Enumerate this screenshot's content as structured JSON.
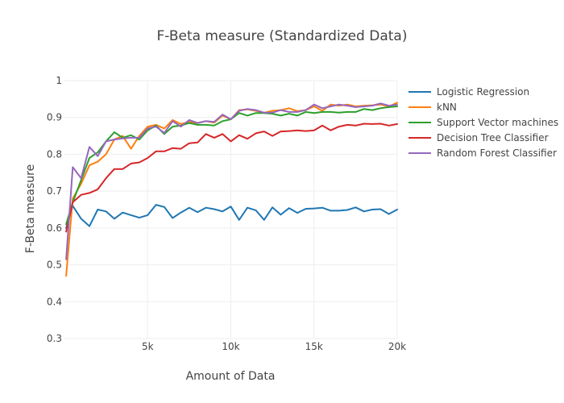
{
  "chart_data": {
    "type": "line",
    "title": "F-Beta measure (Standardized Data)",
    "xlabel": "Amount of Data",
    "ylabel": "F-Beta measure",
    "xlim": [
      0,
      20000
    ],
    "ylim": [
      0.3,
      1.0
    ],
    "grid": true,
    "legend_position": "right",
    "x_ticks": [
      5000,
      10000,
      15000,
      20000
    ],
    "x_tick_labels": [
      "5k",
      "10k",
      "15k",
      "20k"
    ],
    "y_ticks": [
      0.3,
      0.4,
      0.5,
      0.6,
      0.7,
      0.8,
      0.9,
      1.0
    ],
    "y_tick_labels": [
      "0.3",
      "0.4",
      "0.5",
      "0.6",
      "0.7",
      "0.8",
      "0.9",
      "1"
    ],
    "x": [
      100,
      500,
      1000,
      1500,
      2000,
      2500,
      3000,
      3500,
      4000,
      4500,
      5000,
      5500,
      6000,
      6500,
      7000,
      7500,
      8000,
      8500,
      9000,
      9500,
      10000,
      10500,
      11000,
      11500,
      12000,
      12500,
      13000,
      13500,
      14000,
      14500,
      15000,
      15500,
      16000,
      16500,
      17000,
      17500,
      18000,
      18500,
      19000,
      19500,
      20000
    ],
    "series": [
      {
        "name": "Logistic Regression",
        "color": "#1f77b4",
        "values": [
          0.6,
          0.66,
          0.625,
          0.605,
          0.65,
          0.645,
          0.625,
          0.642,
          0.635,
          0.628,
          0.635,
          0.663,
          0.657,
          0.627,
          0.642,
          0.655,
          0.643,
          0.655,
          0.651,
          0.645,
          0.658,
          0.622,
          0.655,
          0.648,
          0.622,
          0.656,
          0.636,
          0.654,
          0.641,
          0.652,
          0.653,
          0.655,
          0.647,
          0.647,
          0.649,
          0.656,
          0.645,
          0.65,
          0.651,
          0.638,
          0.65
        ]
      },
      {
        "name": "kNN",
        "color": "#ff7f0e",
        "values": [
          0.47,
          0.68,
          0.72,
          0.77,
          0.78,
          0.8,
          0.84,
          0.85,
          0.815,
          0.85,
          0.875,
          0.88,
          0.87,
          0.893,
          0.882,
          0.888,
          0.885,
          0.89,
          0.886,
          0.905,
          0.895,
          0.92,
          0.922,
          0.918,
          0.913,
          0.918,
          0.92,
          0.925,
          0.917,
          0.92,
          0.93,
          0.918,
          0.935,
          0.932,
          0.935,
          0.93,
          0.932,
          0.933,
          0.935,
          0.93,
          0.94
        ]
      },
      {
        "name": "Support Vector machines",
        "color": "#2ca02c",
        "values": [
          0.61,
          0.67,
          0.73,
          0.79,
          0.805,
          0.835,
          0.86,
          0.845,
          0.852,
          0.84,
          0.865,
          0.878,
          0.855,
          0.875,
          0.878,
          0.885,
          0.88,
          0.88,
          0.878,
          0.89,
          0.895,
          0.912,
          0.905,
          0.912,
          0.912,
          0.91,
          0.905,
          0.91,
          0.905,
          0.915,
          0.912,
          0.915,
          0.915,
          0.913,
          0.915,
          0.915,
          0.923,
          0.92,
          0.925,
          0.928,
          0.93
        ]
      },
      {
        "name": "Decision Tree Classifier",
        "color": "#d62728",
        "values": [
          0.59,
          0.67,
          0.69,
          0.695,
          0.705,
          0.735,
          0.76,
          0.76,
          0.775,
          0.778,
          0.79,
          0.808,
          0.808,
          0.817,
          0.815,
          0.83,
          0.832,
          0.855,
          0.845,
          0.855,
          0.835,
          0.852,
          0.842,
          0.857,
          0.862,
          0.85,
          0.862,
          0.863,
          0.865,
          0.863,
          0.865,
          0.878,
          0.865,
          0.875,
          0.88,
          0.878,
          0.883,
          0.882,
          0.883,
          0.878,
          0.882
        ]
      },
      {
        "name": "Random Forest Classifier",
        "color": "#9467bd",
        "values": [
          0.515,
          0.765,
          0.735,
          0.82,
          0.795,
          0.835,
          0.84,
          0.843,
          0.845,
          0.845,
          0.87,
          0.875,
          0.858,
          0.89,
          0.875,
          0.893,
          0.885,
          0.89,
          0.888,
          0.908,
          0.895,
          0.918,
          0.923,
          0.92,
          0.913,
          0.913,
          0.92,
          0.915,
          0.915,
          0.92,
          0.935,
          0.925,
          0.93,
          0.935,
          0.932,
          0.928,
          0.93,
          0.932,
          0.938,
          0.932,
          0.935
        ]
      }
    ]
  }
}
